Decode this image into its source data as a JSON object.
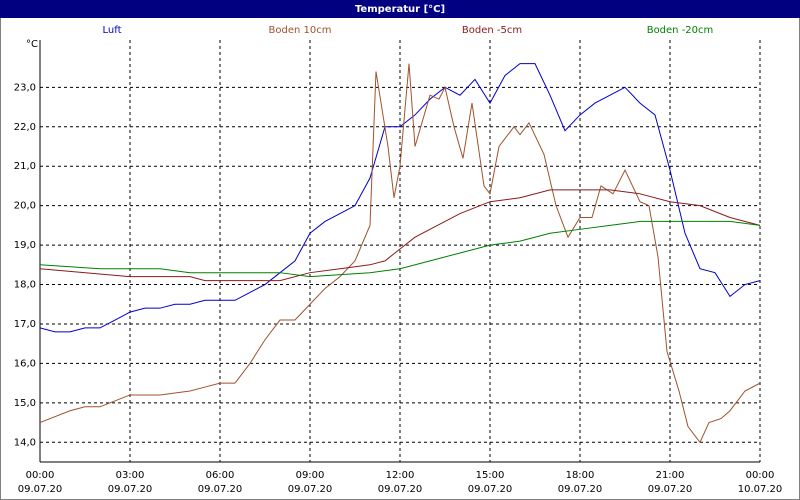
{
  "chart_data": {
    "type": "line",
    "title": "Temperatur [°C]",
    "y_unit": "°C",
    "grid": true,
    "xlim": [
      0,
      24
    ],
    "ylim": [
      13.5,
      24.2
    ],
    "xticks": [
      {
        "value": 0,
        "label": "00:00",
        "date": "09.07.20"
      },
      {
        "value": 3,
        "label": "03:00",
        "date": "09.07.20"
      },
      {
        "value": 6,
        "label": "06:00",
        "date": "09.07.20"
      },
      {
        "value": 9,
        "label": "09:00",
        "date": "09.07.20"
      },
      {
        "value": 12,
        "label": "12:00",
        "date": "09.07.20"
      },
      {
        "value": 15,
        "label": "15:00",
        "date": "09.07.20"
      },
      {
        "value": 18,
        "label": "18:00",
        "date": "09.07.20"
      },
      {
        "value": 21,
        "label": "21:00",
        "date": "09.07.20"
      },
      {
        "value": 24,
        "label": "00:00",
        "date": "10.07.20"
      }
    ],
    "yticks": [
      {
        "value": 14,
        "label": "14,0"
      },
      {
        "value": 15,
        "label": "15,0"
      },
      {
        "value": 16,
        "label": "16,0"
      },
      {
        "value": 17,
        "label": "17,0"
      },
      {
        "value": 18,
        "label": "18,0"
      },
      {
        "value": 19,
        "label": "19,0"
      },
      {
        "value": 20,
        "label": "20,0"
      },
      {
        "value": 21,
        "label": "21,0"
      },
      {
        "value": 22,
        "label": "22,0"
      },
      {
        "value": 23,
        "label": "23,0"
      }
    ],
    "series": [
      {
        "name": "Luft",
        "color": "#0000cc",
        "x": [
          0,
          0.5,
          1,
          1.5,
          2,
          2.5,
          3,
          3.5,
          4,
          4.5,
          5,
          5.5,
          6,
          6.5,
          7,
          7.5,
          8,
          8.5,
          9,
          9.5,
          10,
          10.5,
          11,
          11.5,
          12,
          12.5,
          13,
          13.5,
          14,
          14.5,
          15,
          15.5,
          16,
          16.5,
          17,
          17.5,
          18,
          18.5,
          19,
          19.5,
          20,
          20.5,
          21,
          21.5,
          22,
          22.5,
          23,
          23.5,
          24
        ],
        "values": [
          16.9,
          16.8,
          16.8,
          16.9,
          16.9,
          17.1,
          17.3,
          17.4,
          17.4,
          17.5,
          17.5,
          17.6,
          17.6,
          17.6,
          17.8,
          18.0,
          18.3,
          18.6,
          19.3,
          19.6,
          19.8,
          20.0,
          20.7,
          22.0,
          22.0,
          22.3,
          22.7,
          23.0,
          22.8,
          23.2,
          22.6,
          23.3,
          23.6,
          23.6,
          22.8,
          21.9,
          22.3,
          22.6,
          22.8,
          23.0,
          22.6,
          22.3,
          20.9,
          19.3,
          18.4,
          18.3,
          17.7,
          18.0,
          18.1
        ]
      },
      {
        "name": "Boden 10cm",
        "color": "#a0522d",
        "x": [
          0,
          1,
          1.5,
          2,
          3,
          4,
          5,
          5.5,
          6,
          6.5,
          7,
          7.5,
          8,
          8.5,
          9,
          9.5,
          10,
          10.5,
          11,
          11.2,
          11.6,
          11.8,
          12,
          12.3,
          12.5,
          13,
          13.3,
          13.5,
          13.8,
          14.1,
          14.4,
          14.8,
          15,
          15.3,
          15.8,
          16,
          16.3,
          16.8,
          17.2,
          17.6,
          18,
          18.4,
          18.7,
          19.1,
          19.5,
          20,
          20.3,
          20.6,
          20.9,
          21.3,
          21.6,
          22,
          22.3,
          22.7,
          23,
          23.5,
          24
        ],
        "values": [
          14.5,
          14.8,
          14.9,
          14.9,
          15.2,
          15.2,
          15.3,
          15.4,
          15.5,
          15.5,
          16.0,
          16.6,
          17.1,
          17.1,
          17.5,
          17.9,
          18.2,
          18.6,
          19.5,
          23.4,
          21.5,
          20.2,
          21.0,
          23.6,
          21.5,
          22.8,
          22.7,
          23.0,
          22.0,
          21.2,
          22.6,
          20.5,
          20.3,
          21.5,
          22.0,
          21.8,
          22.1,
          21.3,
          20.0,
          19.2,
          19.7,
          19.7,
          20.5,
          20.3,
          20.9,
          20.1,
          20.0,
          18.7,
          16.3,
          15.3,
          14.4,
          14.0,
          14.5,
          14.6,
          14.8,
          15.3,
          15.5
        ]
      },
      {
        "name": "Boden -5cm",
        "color": "#8b1a1a",
        "x": [
          0,
          3,
          5,
          5.5,
          8,
          9,
          10,
          11,
          11.5,
          12,
          12.5,
          13,
          14,
          15,
          16,
          17,
          18,
          19,
          20,
          21,
          22,
          23,
          24
        ],
        "values": [
          18.4,
          18.2,
          18.2,
          18.1,
          18.1,
          18.3,
          18.4,
          18.5,
          18.6,
          18.9,
          19.2,
          19.4,
          19.8,
          20.1,
          20.2,
          20.4,
          20.4,
          20.4,
          20.3,
          20.1,
          20.0,
          19.7,
          19.5
        ]
      },
      {
        "name": "Boden -20cm",
        "color": "#008000",
        "x": [
          0,
          2,
          4,
          5,
          8,
          9,
          11,
          12,
          13,
          14,
          15,
          16,
          17,
          18,
          19,
          20,
          23,
          24
        ],
        "values": [
          18.5,
          18.4,
          18.4,
          18.3,
          18.3,
          18.2,
          18.3,
          18.4,
          18.6,
          18.8,
          19.0,
          19.1,
          19.3,
          19.4,
          19.5,
          19.6,
          19.6,
          19.5
        ]
      }
    ]
  }
}
